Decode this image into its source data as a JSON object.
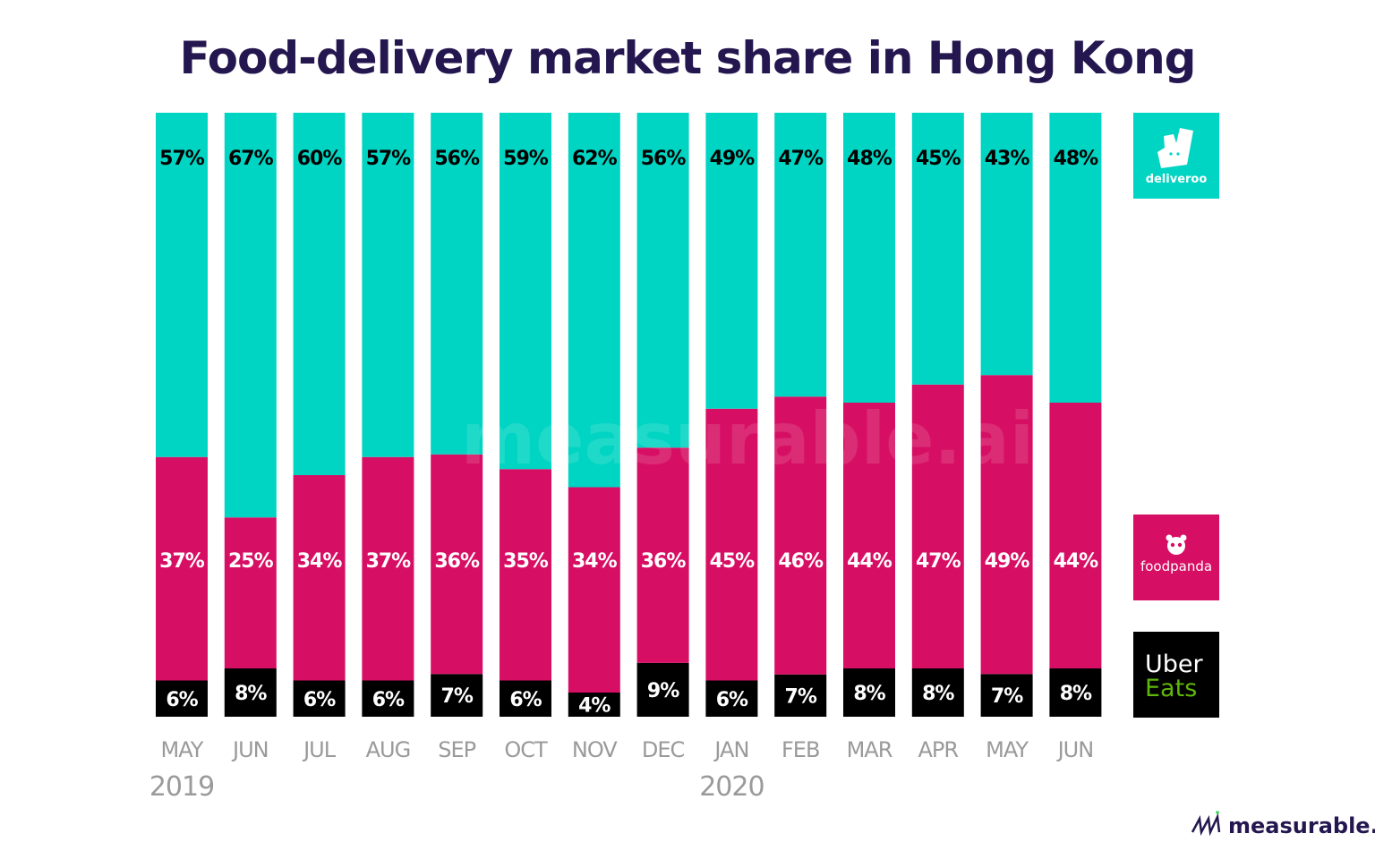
{
  "chart_data": {
    "type": "bar",
    "stacked": true,
    "title": "Food-delivery market share in Hong Kong",
    "categories": [
      "MAY",
      "JUN",
      "JUL",
      "AUG",
      "SEP",
      "OCT",
      "NOV",
      "DEC",
      "JAN",
      "FEB",
      "MAR",
      "APR",
      "MAY",
      "JUN"
    ],
    "year_labels": [
      {
        "index": 0,
        "label": "2019"
      },
      {
        "index": 8,
        "label": "2020"
      }
    ],
    "unit": "%",
    "ylim": [
      0,
      100
    ],
    "grid": false,
    "legend_position": "right",
    "series": [
      {
        "name": "Uber Eats",
        "color": "#000000",
        "label_color": "#ffffff",
        "values": [
          6,
          8,
          6,
          6,
          7,
          6,
          4,
          9,
          6,
          7,
          8,
          8,
          7,
          8
        ]
      },
      {
        "name": "foodpanda",
        "color": "#d70f64",
        "label_color": "#ffffff",
        "values": [
          37,
          25,
          34,
          37,
          36,
          35,
          34,
          36,
          45,
          46,
          44,
          47,
          49,
          44
        ]
      },
      {
        "name": "deliveroo",
        "color": "#00d4c2",
        "label_color": "#000000",
        "values": [
          57,
          67,
          60,
          57,
          56,
          59,
          62,
          56,
          49,
          47,
          48,
          45,
          43,
          48
        ]
      }
    ],
    "legend": {
      "deliveroo": "deliveroo",
      "foodpanda": "foodpanda",
      "ubereats_line1": "Uber",
      "ubereats_line2": "Eats"
    },
    "watermark": "measurable.ai",
    "brand": "measurable.ai"
  }
}
